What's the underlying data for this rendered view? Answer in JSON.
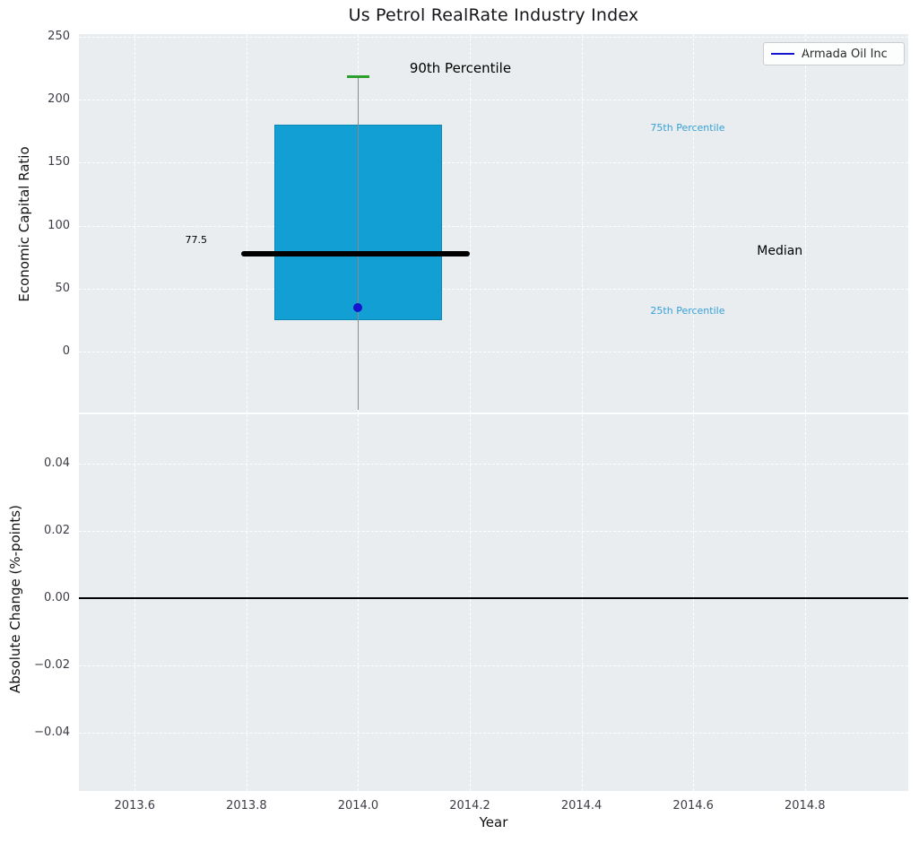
{
  "title": "Us Petrol RealRate Industry Index",
  "legend": {
    "label": "Armada Oil Inc",
    "line_color": "#1414cc"
  },
  "colors": {
    "plot_background": "#e9edef",
    "grid": "#ffffff",
    "box_fill": "#129fd4",
    "box_edge": "#0d86b5",
    "median": "#000000",
    "whisker": "#8a8a8a",
    "cap_green": "#2ca02c",
    "company_point": "#1414cc",
    "percentile_text": "#35a0d8",
    "zero_line": "#000000"
  },
  "chart_data": {
    "type": "box",
    "title": "Us Petrol RealRate Industry Index",
    "xlabel": "Year",
    "x": {
      "ticks": [
        2013.6,
        2013.8,
        2014.0,
        2014.2,
        2014.4,
        2014.6,
        2014.8
      ],
      "lim": [
        2013.5,
        2014.985
      ]
    },
    "top": {
      "ylabel": "Economic Capital Ratio",
      "yticks": [
        0,
        50,
        100,
        150,
        200,
        250
      ],
      "ylim": [
        -48,
        252
      ],
      "grid": true,
      "legend_position": "upper right",
      "box": {
        "x": 2014.0,
        "box_left": 2013.85,
        "box_right": 2014.15,
        "q25": 25,
        "q75": 180,
        "median": 77.5,
        "p90": 218,
        "whisker_low": -46,
        "median_left": 2013.79,
        "median_right": 2014.2,
        "cap_halfwidth": 0.02
      },
      "company_point": {
        "x": 2014.0,
        "y": 35
      },
      "annotations": [
        {
          "id": "90th-percentile-label",
          "text": "90th Percentile",
          "x": 2014.183,
          "y": 224,
          "color": "#000000",
          "size": 15
        },
        {
          "id": "75th-percentile-label",
          "text": "75th Percentile",
          "x": 2014.59,
          "y": 177,
          "color": "#35a0d8",
          "size": 11
        },
        {
          "id": "25th-percentile-label",
          "text": "25th Percentile",
          "x": 2014.59,
          "y": 32,
          "color": "#35a0d8",
          "size": 11
        },
        {
          "id": "median-label",
          "text": "Median",
          "x": 2014.755,
          "y": 79,
          "color": "#000000",
          "size": 14
        },
        {
          "id": "median-value-label",
          "text": "77.5",
          "x": 2013.71,
          "y": 88,
          "color": "#000000",
          "size": 11
        }
      ]
    },
    "bottom": {
      "ylabel": "Absolute Change (%-points)",
      "yticks": [
        -0.04,
        -0.02,
        0.0,
        0.02,
        0.04
      ],
      "ylim": [
        -0.0573,
        0.0547
      ],
      "grid": true,
      "zero_line": 0.0
    }
  }
}
